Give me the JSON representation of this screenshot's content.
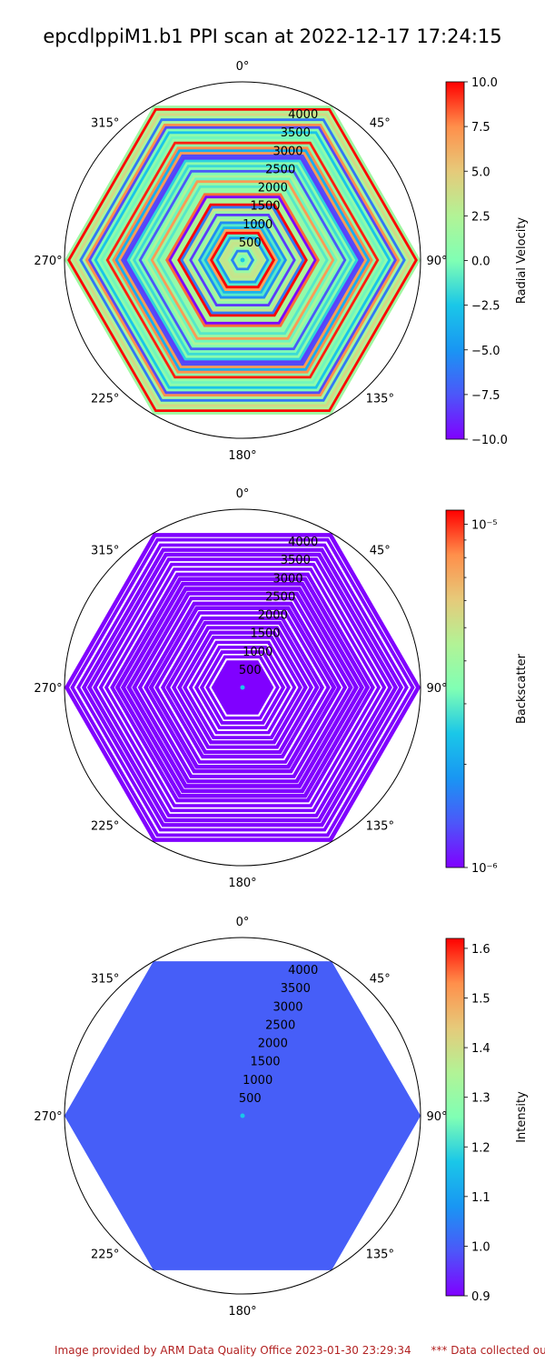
{
  "figure": {
    "title": "epcdlppiM1.b1 PPI scan at 2022-12-17 17:24:15",
    "footer_left": "Image provided by ARM Data Quality Office 2023-01-30 23:29:34",
    "footer_right": "*** Data collected outside"
  },
  "chart_data": [
    {
      "type": "heatmap",
      "projection": "polar",
      "theta_direction": "clockwise",
      "theta_zero": "north",
      "theta_ticks": [
        "0°",
        "45°",
        "90°",
        "135°",
        "180°",
        "225°",
        "270°",
        "315°"
      ],
      "r_ticks": [
        500,
        1000,
        1500,
        2000,
        2500,
        3000,
        3500,
        4000
      ],
      "r_range": [
        0,
        4500
      ],
      "scan_shape": "hexagon",
      "hex_apothem": 3900,
      "colorbar": {
        "label": "Radial Velocity",
        "scale": "linear",
        "range": [
          -10,
          10
        ],
        "ticks": [
          "10.0",
          "7.5",
          "5.0",
          "2.5",
          "0.0",
          "−2.5",
          "−5.0",
          "−7.5",
          "−10.0"
        ],
        "colormap": "rainbow"
      },
      "fill": "striped-multicolor"
    },
    {
      "type": "heatmap",
      "projection": "polar",
      "theta_direction": "clockwise",
      "theta_zero": "north",
      "theta_ticks": [
        "0°",
        "45°",
        "90°",
        "135°",
        "180°",
        "225°",
        "270°",
        "315°"
      ],
      "r_ticks": [
        500,
        1000,
        1500,
        2000,
        2500,
        3000,
        3500,
        4000
      ],
      "r_range": [
        0,
        4500
      ],
      "scan_shape": "hexagon",
      "hex_apothem": 3900,
      "colorbar": {
        "label": "Backscatter",
        "scale": "log",
        "range": [
          1e-06,
          1.1e-05
        ],
        "ticks": [
          "10⁻⁵",
          "10⁻⁶"
        ],
        "colormap": "rainbow"
      },
      "fill": "uniform-minimum-with-gaps",
      "value": 1e-06
    },
    {
      "type": "heatmap",
      "projection": "polar",
      "theta_direction": "clockwise",
      "theta_zero": "north",
      "theta_ticks": [
        "0°",
        "45°",
        "90°",
        "135°",
        "180°",
        "225°",
        "270°",
        "315°"
      ],
      "r_ticks": [
        500,
        1000,
        1500,
        2000,
        2500,
        3000,
        3500,
        4000
      ],
      "r_range": [
        0,
        4500
      ],
      "scan_shape": "hexagon",
      "hex_apothem": 3900,
      "colorbar": {
        "label": "Intensity",
        "scale": "linear",
        "range": [
          0.9,
          1.62
        ],
        "ticks": [
          "1.6",
          "1.5",
          "1.4",
          "1.3",
          "1.2",
          "1.1",
          "1.0",
          "0.9"
        ],
        "colormap": "rainbow"
      },
      "fill": "uniform",
      "value": 1.0
    }
  ]
}
